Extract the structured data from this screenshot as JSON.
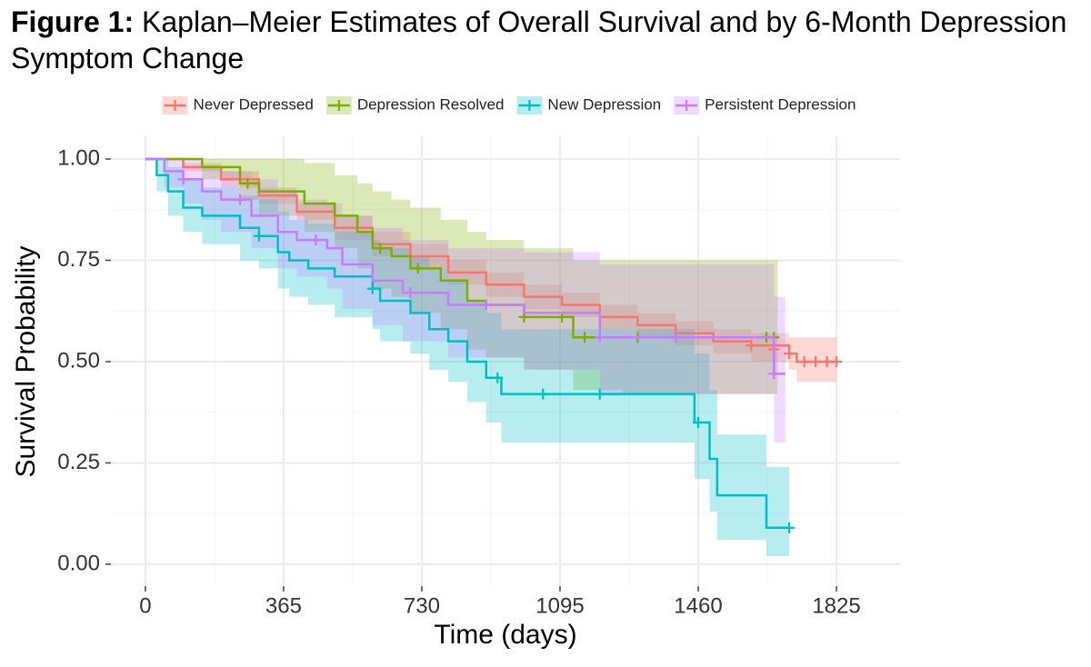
{
  "chart_data": {
    "type": "km",
    "title_prefix": "Figure 1:",
    "title": "Kaplan–Meier Estimates of Overall Survival and by 6-Month Depression Symptom Change",
    "x_label": "Time (days)",
    "y_label": "Survival Probability",
    "xlim": [
      -91,
      1993
    ],
    "ylim": [
      -0.054,
      1.056
    ],
    "xticks": [
      0,
      365,
      730,
      1095,
      1460,
      1825
    ],
    "yticks": [
      {
        "value": 0,
        "label": "0.00"
      },
      {
        "value": 0.25,
        "label": "0.25"
      },
      {
        "value": 0.5,
        "label": "0.50"
      },
      {
        "value": 0.75,
        "label": "0.75"
      },
      {
        "value": 1,
        "label": "1.00"
      }
    ],
    "minor_xticks": [
      182.5,
      547.5,
      912.5,
      1277.5,
      1642.5
    ],
    "minor_yticks": [
      0.125,
      0.375,
      0.625,
      0.875
    ],
    "grid": true,
    "series": [
      {
        "name": "Never Depressed",
        "color": "#F8766D",
        "x": [
          0,
          100,
          200,
          300,
          400,
          500,
          600,
          700,
          800,
          900,
          1000,
          1100,
          1200,
          1300,
          1400,
          1500,
          1600,
          1700,
          1720,
          1825
        ],
        "values": [
          1,
          0.98,
          0.95,
          0.91,
          0.87,
          0.83,
          0.79,
          0.76,
          0.72,
          0.69,
          0.66,
          0.64,
          0.61,
          0.59,
          0.57,
          0.55,
          0.54,
          0.52,
          0.5,
          0.5
        ],
        "lower": [
          1,
          0.97,
          0.93,
          0.89,
          0.85,
          0.8,
          0.76,
          0.73,
          0.69,
          0.66,
          0.63,
          0.61,
          0.58,
          0.56,
          0.54,
          0.52,
          0.5,
          0.48,
          0.45,
          0.45
        ],
        "upper": [
          1,
          0.99,
          0.97,
          0.93,
          0.89,
          0.86,
          0.82,
          0.79,
          0.75,
          0.72,
          0.69,
          0.67,
          0.64,
          0.62,
          0.6,
          0.58,
          0.57,
          0.56,
          0.56,
          0.56
        ],
        "censored": {
          "x": [
            1600,
            1660,
            1700,
            1740,
            1770,
            1800,
            1825
          ],
          "values": [
            0.54,
            0.53,
            0.52,
            0.5,
            0.5,
            0.5,
            0.5
          ]
        }
      },
      {
        "name": "Depression Resolved",
        "color": "#7CAE00",
        "x": [
          0,
          150,
          250,
          300,
          420,
          500,
          560,
          600,
          650,
          700,
          780,
          850,
          900,
          1000,
          1130,
          1260,
          1400,
          1670
        ],
        "values": [
          1,
          0.98,
          0.94,
          0.92,
          0.89,
          0.86,
          0.82,
          0.78,
          0.76,
          0.73,
          0.7,
          0.65,
          0.64,
          0.61,
          0.56,
          0.56,
          0.56,
          0.56
        ],
        "lower": [
          1,
          0.95,
          0.9,
          0.86,
          0.82,
          0.78,
          0.73,
          0.68,
          0.66,
          0.62,
          0.58,
          0.53,
          0.51,
          0.48,
          0.43,
          0.42,
          0.42,
          0.42
        ],
        "upper": [
          1,
          1,
          1,
          1,
          0.99,
          0.96,
          0.94,
          0.92,
          0.9,
          0.88,
          0.85,
          0.82,
          0.8,
          0.78,
          0.75,
          0.75,
          0.75,
          0.75
        ],
        "censored": {
          "x": [
            270,
            620,
            720,
            900,
            1000,
            1100,
            1160,
            1300,
            1640,
            1660
          ],
          "values": [
            0.94,
            0.78,
            0.73,
            0.64,
            0.61,
            0.61,
            0.56,
            0.56,
            0.56,
            0.56
          ]
        }
      },
      {
        "name": "New Depression",
        "color": "#00BFC4",
        "x": [
          0,
          30,
          60,
          100,
          150,
          250,
          300,
          350,
          380,
          430,
          500,
          600,
          620,
          700,
          750,
          800,
          850,
          900,
          940,
          1450,
          1490,
          1510,
          1640,
          1700
        ],
        "values": [
          1,
          0.96,
          0.92,
          0.88,
          0.86,
          0.83,
          0.81,
          0.77,
          0.75,
          0.73,
          0.71,
          0.68,
          0.65,
          0.62,
          0.58,
          0.55,
          0.5,
          0.46,
          0.42,
          0.35,
          0.26,
          0.17,
          0.09,
          0.09
        ],
        "lower": [
          1,
          0.92,
          0.86,
          0.82,
          0.79,
          0.75,
          0.73,
          0.68,
          0.66,
          0.64,
          0.61,
          0.58,
          0.55,
          0.52,
          0.48,
          0.45,
          0.4,
          0.35,
          0.3,
          0.21,
          0.13,
          0.06,
          0.02,
          0.02
        ],
        "upper": [
          1,
          1,
          0.98,
          0.95,
          0.93,
          0.91,
          0.9,
          0.87,
          0.85,
          0.84,
          0.82,
          0.8,
          0.78,
          0.76,
          0.73,
          0.7,
          0.65,
          0.62,
          0.58,
          0.52,
          0.43,
          0.32,
          0.24,
          0.24
        ],
        "censored": {
          "x": [
            300,
            600,
            930,
            1050,
            1200,
            1460,
            1700
          ],
          "values": [
            0.81,
            0.68,
            0.46,
            0.42,
            0.42,
            0.35,
            0.09
          ]
        }
      },
      {
        "name": "Persistent Depression",
        "color": "#C77CFF",
        "x": [
          0,
          50,
          100,
          150,
          200,
          280,
          350,
          400,
          480,
          520,
          600,
          680,
          730,
          800,
          880,
          1000,
          1200,
          1650,
          1660,
          1690
        ],
        "values": [
          1,
          0.97,
          0.95,
          0.92,
          0.9,
          0.86,
          0.82,
          0.8,
          0.78,
          0.74,
          0.7,
          0.67,
          0.67,
          0.64,
          0.64,
          0.62,
          0.56,
          0.56,
          0.47,
          0.47
        ],
        "lower": [
          1,
          0.93,
          0.89,
          0.85,
          0.82,
          0.78,
          0.73,
          0.71,
          0.68,
          0.63,
          0.59,
          0.55,
          0.55,
          0.51,
          0.51,
          0.48,
          0.42,
          0.42,
          0.3,
          0.3
        ],
        "upper": [
          1,
          1,
          1,
          0.98,
          0.97,
          0.95,
          0.92,
          0.9,
          0.89,
          0.86,
          0.83,
          0.8,
          0.8,
          0.78,
          0.78,
          0.77,
          0.74,
          0.74,
          0.66,
          0.66
        ],
        "censored": {
          "x": [
            100,
            250,
            450,
            700,
            900,
            1200,
            1400,
            1660
          ],
          "values": [
            0.95,
            0.9,
            0.8,
            0.67,
            0.64,
            0.56,
            0.56,
            0.47
          ]
        }
      }
    ]
  }
}
